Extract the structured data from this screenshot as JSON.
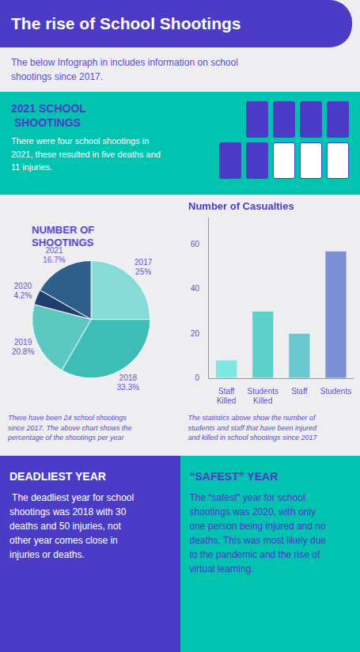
{
  "title": "The rise of School Shootings",
  "subtitle": "The below Infograph in includes information on school\nshootings since 2017.",
  "annotations": [
    "2021 SCHOOL",
    " SHOOTINGS",
    "There were four school shootings in\n2021, these resulted in five deaths and\n11 injuries.",
    "DEADLIEST YEAR",
    " The deadliest year for school\nshootings was 2018 with 30\ndeaths and 50 injuries, not\nother year comes close in\ninjuries or deaths.",
    "“SAFEST” YEAR",
    "The “safest” year for school\nshootings was 2020, with only\none person being injured and no\ndeaths. This was most likely due\nto the pandemic and the rise of\nvirtual learning."
  ],
  "chart_data": [
    {
      "type": "pie",
      "title": "NUMBER OF\nSHOOTINGS",
      "categories": [
        "2017",
        "2018",
        "2019",
        "2020",
        "2021"
      ],
      "values": [
        25,
        33.3,
        20.8,
        4.2,
        16.7
      ],
      "value_labels": [
        "25%",
        "33.3%",
        "20.8%",
        "4.2%",
        "16.7%"
      ],
      "colors": [
        "#86dbd6",
        "#3dbdb5",
        "#5dc8c0",
        "#1e3f6b",
        "#2d5f8a"
      ],
      "data_labels": true,
      "annotations": [
        "There have been 24 school shootings\nsince 2017. The above chart shows the\npercentage of the shootings per year"
      ]
    },
    {
      "type": "bar",
      "title": "Number of Casualties",
      "categories": [
        "Staff\nKilled",
        "Students\nKilled",
        "Staff",
        "Students"
      ],
      "values": [
        8,
        30,
        20,
        57
      ],
      "colors": [
        "#7ee8e2",
        "#5dd0ca",
        "#6ac8d0",
        "#7b8fd4"
      ],
      "ylim": [
        0,
        72
      ],
      "yticks": [
        0,
        20,
        40,
        60
      ],
      "grid": false,
      "annotations": [
        "The statistics above show the number of\nstudents and staff that have been injured\nand killed in school shootings since 2017"
      ]
    }
  ]
}
